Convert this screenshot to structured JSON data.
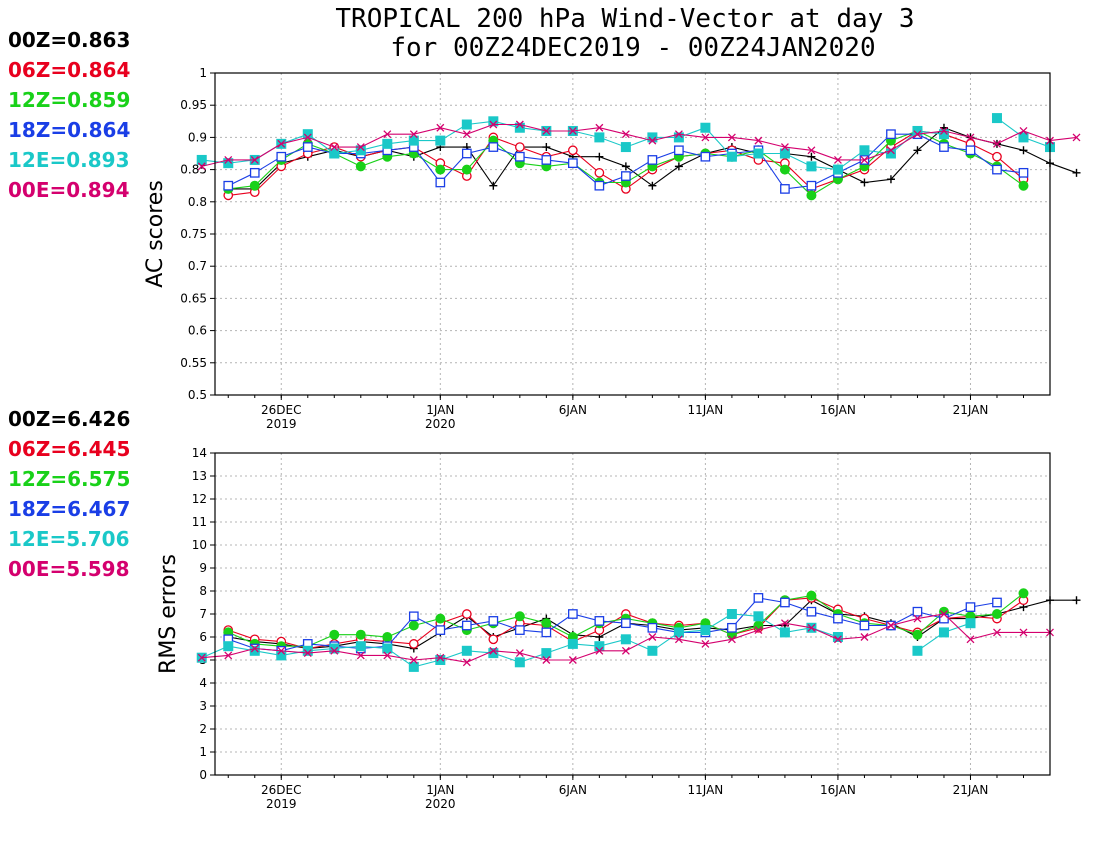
{
  "title_line1": "TROPICAL 200 hPa Wind-Vector at day 3",
  "title_line2": "for 00Z24DEC2019 - 00Z24JAN2020",
  "chart_data": [
    {
      "type": "line",
      "ylabel": "AC scores",
      "ylim": [
        0.5,
        1
      ],
      "yticks": [
        "0.5",
        "0.55",
        "0.6",
        "0.65",
        "0.7",
        "0.75",
        "0.8",
        "0.85",
        "0.9",
        "0.95",
        "1"
      ],
      "xticks": [
        {
          "day": 26,
          "line1": "26DEC",
          "line2": "2019"
        },
        {
          "day": 32,
          "line1": "1JAN",
          "line2": "2020"
        },
        {
          "day": 37,
          "line1": "6JAN",
          "line2": ""
        },
        {
          "day": 42,
          "line1": "11JAN",
          "line2": ""
        },
        {
          "day": 47,
          "line1": "16JAN",
          "line2": ""
        },
        {
          "day": 52,
          "line1": "21JAN",
          "line2": ""
        }
      ],
      "grid": true,
      "legend": [
        {
          "label": "00Z=0.863",
          "color": "#000000"
        },
        {
          "label": "06Z=0.864",
          "color": "#e8001e"
        },
        {
          "label": "12Z=0.859",
          "color": "#19d119"
        },
        {
          "label": "18Z=0.864",
          "color": "#1a3ee6"
        },
        {
          "label": "12E=0.893",
          "color": "#1ac8c8"
        },
        {
          "label": "00E=0.894",
          "color": "#d4006e"
        }
      ],
      "series": [
        {
          "name": "00Z",
          "color": "#000000",
          "marker": "plus",
          "x_start": 24,
          "values": [
            0.82,
            0.82,
            0.86,
            0.87,
            0.88,
            0.87,
            0.88,
            0.87,
            0.885,
            0.885,
            0.825,
            0.885,
            0.885,
            0.87,
            0.87,
            0.855,
            0.825,
            0.855,
            0.875,
            0.885,
            0.875,
            0.875,
            0.87,
            0.85,
            0.83,
            0.835,
            0.88,
            0.915,
            0.9,
            0.89,
            0.88,
            0.86,
            0.845
          ]
        },
        {
          "name": "06Z",
          "color": "#e8001e",
          "marker": "circle",
          "x_start": 24,
          "values": [
            0.81,
            0.815,
            0.855,
            0.875,
            0.885,
            0.87,
            0.88,
            0.885,
            0.86,
            0.84,
            0.9,
            0.885,
            0.87,
            0.88,
            0.845,
            0.82,
            0.85,
            0.87,
            0.875,
            0.88,
            0.865,
            0.86,
            0.82,
            0.835,
            0.85,
            0.885,
            0.91,
            0.905,
            0.89,
            0.87,
            0.835
          ]
        },
        {
          "name": "12Z",
          "color": "#19d119",
          "marker": "dot",
          "x_start": 24,
          "values": [
            0.82,
            0.825,
            0.865,
            0.89,
            0.875,
            0.855,
            0.87,
            0.875,
            0.85,
            0.85,
            0.895,
            0.86,
            0.855,
            0.86,
            0.83,
            0.83,
            0.855,
            0.87,
            0.875,
            0.87,
            0.88,
            0.85,
            0.81,
            0.835,
            0.855,
            0.895,
            0.91,
            0.89,
            0.875,
            0.855,
            0.825
          ]
        },
        {
          "name": "18Z",
          "color": "#1a3ee6",
          "marker": "square",
          "x_start": 24,
          "values": [
            0.825,
            0.845,
            0.87,
            0.885,
            0.875,
            0.875,
            0.88,
            0.885,
            0.83,
            0.875,
            0.885,
            0.87,
            0.865,
            0.86,
            0.825,
            0.84,
            0.865,
            0.88,
            0.87,
            0.875,
            0.88,
            0.82,
            0.825,
            0.845,
            0.865,
            0.905,
            0.905,
            0.885,
            0.88,
            0.85,
            0.845
          ]
        },
        {
          "name": "12E",
          "color": "#1ac8c8",
          "marker": "fsquare",
          "x_start": 23,
          "values": [
            0.865,
            0.86,
            0.865,
            0.89,
            0.905,
            0.875,
            0.88,
            0.89,
            0.895,
            0.895,
            0.92,
            0.925,
            0.915,
            0.91,
            0.91,
            0.9,
            0.885,
            0.9,
            0.9,
            0.915,
            0.87,
            0.875,
            0.875,
            0.855,
            0.85,
            0.88,
            0.875,
            0.91,
            0.905,
            null,
            0.93,
            0.9,
            0.885
          ]
        },
        {
          "name": "00E",
          "color": "#d4006e",
          "marker": "cross",
          "x_start": 23,
          "values": [
            0.855,
            0.865,
            0.865,
            0.89,
            0.9,
            0.885,
            0.885,
            0.905,
            0.905,
            0.915,
            0.905,
            0.92,
            0.92,
            0.91,
            0.91,
            0.915,
            0.905,
            0.895,
            0.905,
            0.9,
            0.9,
            0.895,
            0.885,
            0.88,
            0.865,
            0.865,
            0.88,
            0.905,
            0.91,
            0.9,
            0.89,
            0.91,
            0.895,
            0.9
          ]
        }
      ]
    },
    {
      "type": "line",
      "ylabel": "RMS errors",
      "ylim": [
        0,
        14
      ],
      "yticks": [
        "0",
        "1",
        "2",
        "3",
        "4",
        "5",
        "6",
        "7",
        "8",
        "9",
        "10",
        "11",
        "12",
        "13",
        "14"
      ],
      "xticks": [
        {
          "day": 26,
          "line1": "26DEC",
          "line2": "2019"
        },
        {
          "day": 32,
          "line1": "1JAN",
          "line2": "2020"
        },
        {
          "day": 37,
          "line1": "6JAN",
          "line2": ""
        },
        {
          "day": 42,
          "line1": "11JAN",
          "line2": ""
        },
        {
          "day": 47,
          "line1": "16JAN",
          "line2": ""
        },
        {
          "day": 52,
          "line1": "21JAN",
          "line2": ""
        }
      ],
      "grid": true,
      "legend": [
        {
          "label": "00Z=6.426",
          "color": "#000000"
        },
        {
          "label": "06Z=6.445",
          "color": "#e8001e"
        },
        {
          "label": "12Z=6.575",
          "color": "#19d119"
        },
        {
          "label": "18Z=6.467",
          "color": "#1a3ee6"
        },
        {
          "label": "12E=5.706",
          "color": "#1ac8c8"
        },
        {
          "label": "00E=5.598",
          "color": "#d4006e"
        }
      ],
      "series": [
        {
          "name": "00Z",
          "color": "#000000",
          "marker": "plus",
          "x_start": 24,
          "values": [
            6.0,
            5.8,
            5.7,
            5.5,
            5.6,
            5.8,
            5.7,
            5.5,
            6.2,
            6.9,
            6.0,
            6.4,
            6.8,
            6.1,
            6.0,
            6.6,
            6.5,
            6.3,
            6.4,
            6.3,
            6.5,
            6.5,
            7.6,
            7.0,
            6.9,
            6.6,
            6.0,
            6.8,
            6.8,
            7.0,
            7.3,
            7.6,
            7.6
          ]
        },
        {
          "name": "06Z",
          "color": "#e8001e",
          "marker": "circle",
          "x_start": 24,
          "values": [
            6.3,
            5.9,
            5.8,
            5.5,
            5.7,
            5.9,
            5.8,
            5.7,
            6.6,
            7.0,
            5.9,
            6.6,
            6.5,
            5.8,
            6.3,
            7.0,
            6.6,
            6.5,
            6.6,
            6.1,
            6.4,
            7.6,
            7.7,
            7.2,
            6.8,
            6.5,
            6.2,
            6.8,
            6.9,
            6.8,
            7.6
          ]
        },
        {
          "name": "12Z",
          "color": "#19d119",
          "marker": "dot",
          "x_start": 24,
          "values": [
            6.2,
            5.7,
            5.6,
            5.6,
            6.1,
            6.1,
            6.0,
            6.5,
            6.8,
            6.3,
            6.6,
            6.9,
            6.6,
            6.0,
            6.6,
            6.8,
            6.6,
            6.4,
            6.6,
            6.1,
            6.5,
            7.6,
            7.8,
            7.0,
            6.6,
            6.5,
            6.1,
            7.1,
            6.9,
            7.0,
            7.9
          ]
        },
        {
          "name": "18Z",
          "color": "#1a3ee6",
          "marker": "square",
          "x_start": 24,
          "values": [
            5.9,
            5.5,
            5.4,
            5.7,
            5.6,
            5.5,
            5.6,
            6.9,
            6.3,
            6.5,
            6.7,
            6.3,
            6.2,
            7.0,
            6.7,
            6.6,
            6.4,
            6.2,
            6.2,
            6.4,
            7.7,
            7.5,
            7.1,
            6.8,
            6.5,
            6.5,
            7.1,
            6.8,
            7.3,
            7.5
          ]
        },
        {
          "name": "12E",
          "color": "#1ac8c8",
          "marker": "fsquare",
          "x_start": 23,
          "values": [
            5.1,
            5.6,
            5.4,
            5.2,
            5.4,
            5.5,
            5.6,
            5.5,
            4.7,
            5.0,
            5.4,
            5.3,
            4.9,
            5.3,
            5.7,
            5.6,
            5.9,
            5.4,
            6.2,
            6.3,
            7.0,
            6.9,
            6.2,
            6.4,
            6.0,
            null,
            null,
            5.4,
            6.2,
            6.6
          ]
        },
        {
          "name": "00E",
          "color": "#d4006e",
          "marker": "cross",
          "x_start": 23,
          "values": [
            5.1,
            5.2,
            5.5,
            5.4,
            5.3,
            5.4,
            5.2,
            5.2,
            5.0,
            5.1,
            4.9,
            5.4,
            5.3,
            5.0,
            5.0,
            5.4,
            5.4,
            6.0,
            5.9,
            5.7,
            5.9,
            6.3,
            6.6,
            6.4,
            5.9,
            6.0,
            6.5,
            6.8,
            7.0,
            5.9,
            6.2,
            6.2,
            6.2
          ]
        }
      ]
    }
  ]
}
